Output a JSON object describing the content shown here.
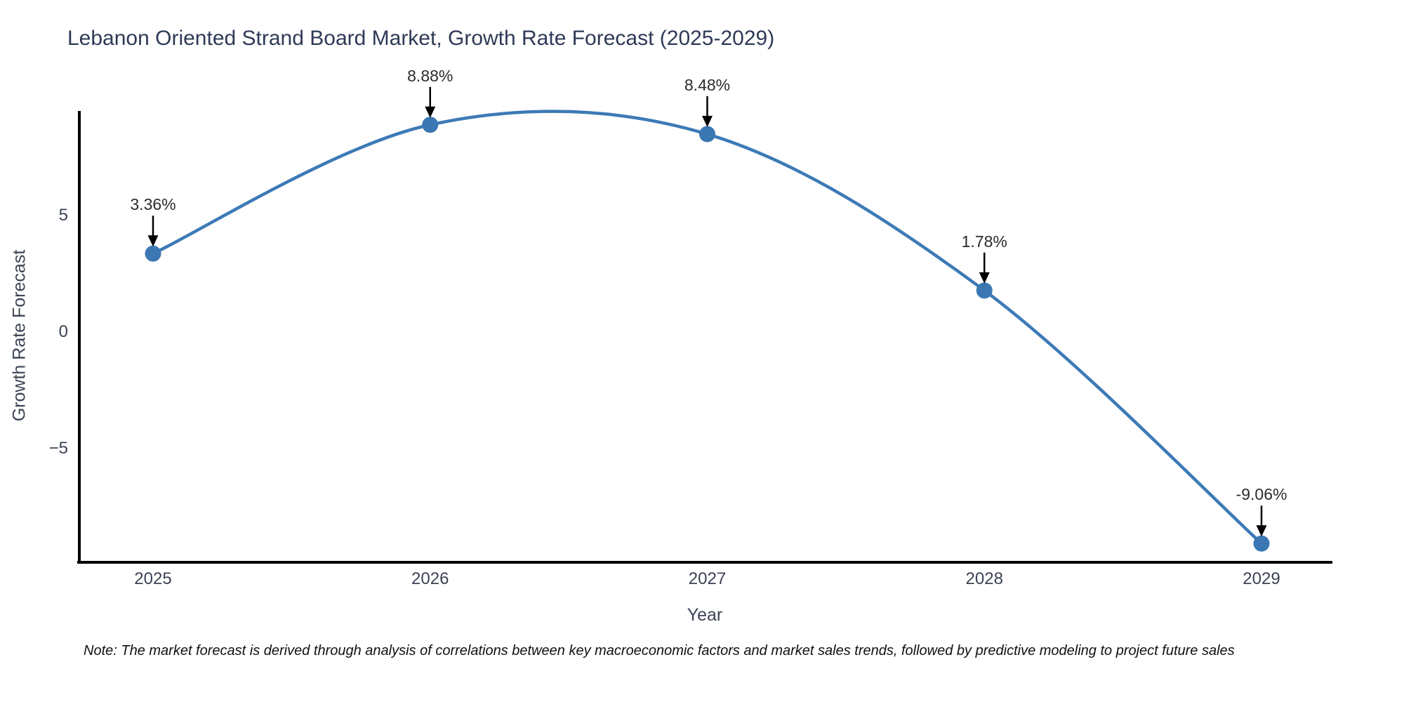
{
  "title": {
    "text": "Lebanon Oriented Strand Board Market, Growth Rate Forecast (2025-2029)",
    "color": "#2e3a56"
  },
  "note": {
    "text": "Note: The market forecast is derived through analysis of correlations between key macroeconomic factors and market sales trends, followed by predictive modeling to project future sales",
    "color": "#111111"
  },
  "chart_data": {
    "type": "line",
    "title": "Lebanon Oriented Strand Board Market, Growth Rate Forecast (2025-2029)",
    "xlabel": "Year",
    "ylabel": "Growth Rate Forecast",
    "categories": [
      "2025",
      "2026",
      "2027",
      "2028",
      "2029"
    ],
    "x": [
      2025,
      2026,
      2027,
      2028,
      2029
    ],
    "values": [
      3.36,
      8.88,
      8.48,
      1.78,
      -9.06
    ],
    "point_labels": [
      "3.36%",
      "8.88%",
      "8.48%",
      "1.78%",
      "-9.06%"
    ],
    "yticks": {
      "values": [
        5,
        0,
        -5
      ],
      "labels": [
        "5",
        "0",
        "−5"
      ]
    },
    "ylim": [
      -9.9,
      9.6
    ],
    "grid": false,
    "legend": false,
    "line_color": "#3d7ab6",
    "marker_color": "#3a77b3",
    "arrow_color": "#000000",
    "axis_color": "#000000",
    "tick_color": "#3c4354",
    "annotation_style": "value label above each point with a downward black arrow to the marker"
  }
}
